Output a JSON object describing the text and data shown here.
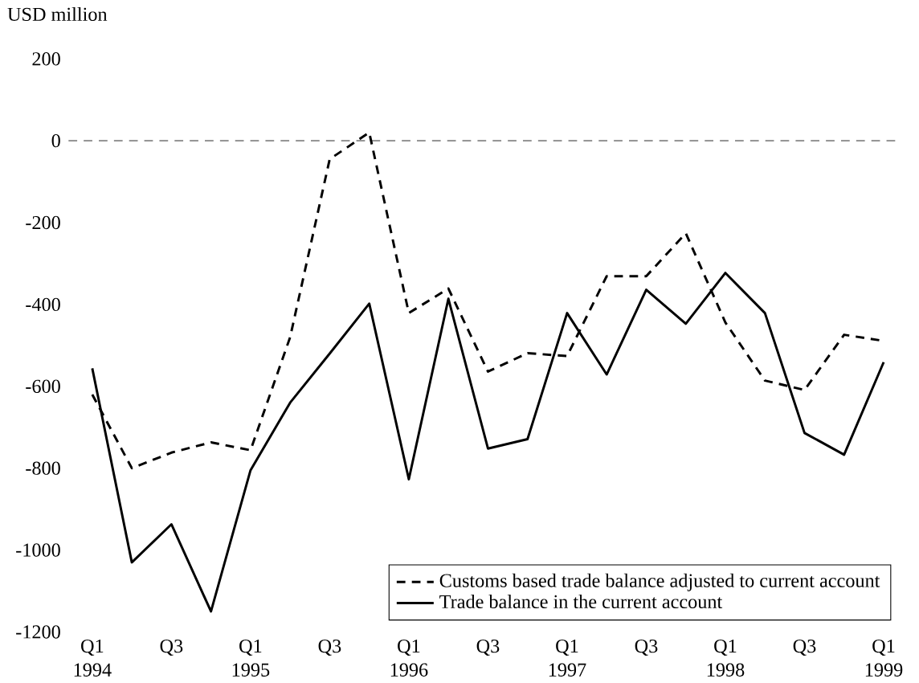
{
  "chart_data": {
    "type": "line",
    "ylabel": "USD million",
    "categories": [
      "Q1 1994",
      null,
      "Q3",
      null,
      "Q1 1995",
      null,
      "Q3",
      null,
      "Q1 1996",
      null,
      "Q3",
      null,
      "Q1 1997",
      null,
      "Q3",
      null,
      "Q1 1998",
      null,
      "Q3",
      null,
      "Q1 1999"
    ],
    "series": [
      {
        "name": "Customs based trade balance adjusted to current account",
        "color": "#000000",
        "line_style": "dashed",
        "values": [
          -620,
          -800,
          -762,
          -737,
          -756,
          -480,
          -45,
          20,
          -421,
          -361,
          -564,
          -519,
          -526,
          -331,
          -331,
          -226,
          -444,
          -586,
          -609,
          -474,
          -489
        ]
      },
      {
        "name": "Trade balance in the current account",
        "color": "#000000",
        "line_style": "solid",
        "values": [
          -556,
          -1030,
          -937,
          -1150,
          -805,
          -640,
          -520,
          -398,
          -827,
          -386,
          -752,
          -729,
          -421,
          -571,
          -364,
          -447,
          -323,
          -421,
          -714,
          -767,
          -541
        ]
      }
    ],
    "ylim": [
      -1200,
      200
    ],
    "yticks": [
      -1200,
      -1000,
      -800,
      -600,
      -400,
      -200,
      0,
      200
    ],
    "ref_lines": [
      {
        "axis": "y",
        "value": 0,
        "color": "#555555",
        "line_style": "dashed"
      }
    ],
    "grid": false,
    "legend": "bottom right",
    "marker": "none"
  }
}
